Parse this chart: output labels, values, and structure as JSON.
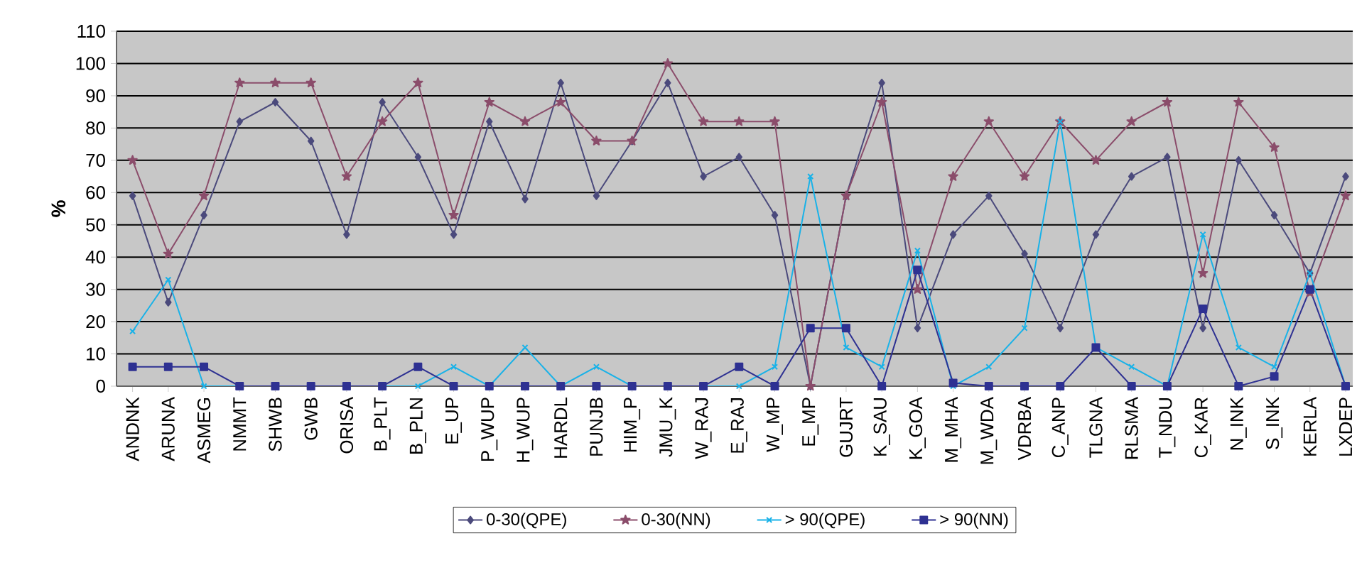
{
  "chart_data": {
    "type": "line",
    "ylabel": "%",
    "categories": [
      "ANDNK",
      "ARUNA",
      "ASMEG",
      "NMMT",
      "SHWB",
      "GWB",
      "ORISA",
      "B_PLT",
      "B_PLN",
      "E_UP",
      "P_WUP",
      "H_WUP",
      "HARDL",
      "PUNJB",
      "HIM_P",
      "JMU_K",
      "W_RAJ",
      "E_RAJ",
      "W_MP",
      "E_MP",
      "GUJRT",
      "K_SAU",
      "K_GOA",
      "M_MHA",
      "M_WDA",
      "VDRBA",
      "C_ANP",
      "TLGNA",
      "RLSMA",
      "T_NDU",
      "C_KAR",
      "N_INK",
      "S_INK",
      "KERLA",
      "LXDEP"
    ],
    "series": [
      {
        "name": "0-30(QPE)",
        "color": "#4b4a7c",
        "marker": "diamond",
        "values": [
          59,
          26,
          53,
          82,
          88,
          76,
          47,
          88,
          71,
          47,
          82,
          58,
          94,
          59,
          76,
          94,
          65,
          71,
          53,
          0,
          59,
          94,
          18,
          47,
          59,
          41,
          18,
          47,
          65,
          71,
          18,
          70,
          53,
          35,
          65
        ]
      },
      {
        "name": "0-30(NN)",
        "color": "#8b4d6b",
        "marker": "star",
        "values": [
          70,
          41,
          59,
          94,
          94,
          94,
          65,
          82,
          94,
          53,
          88,
          82,
          88,
          76,
          76,
          100,
          82,
          82,
          82,
          0,
          59,
          88,
          30,
          65,
          82,
          65,
          82,
          70,
          82,
          88,
          35,
          88,
          74,
          29,
          59
        ]
      },
      {
        "name": "> 90(QPE)",
        "color": "#19b2e8",
        "marker": "cross",
        "values": [
          17,
          33,
          0,
          0,
          0,
          0,
          0,
          0,
          0,
          6,
          0,
          12,
          0,
          6,
          0,
          0,
          0,
          0,
          6,
          65,
          12,
          6,
          42,
          0,
          6,
          18,
          82,
          12,
          6,
          0,
          47,
          12,
          6,
          35,
          0
        ]
      },
      {
        "name": "> 90(NN)",
        "color": "#2e3192",
        "marker": "square",
        "values": [
          6,
          6,
          6,
          0,
          0,
          0,
          0,
          0,
          6,
          0,
          0,
          0,
          0,
          0,
          0,
          0,
          0,
          6,
          0,
          18,
          18,
          0,
          36,
          1,
          0,
          0,
          0,
          12,
          0,
          0,
          24,
          0,
          3,
          30,
          0
        ]
      }
    ],
    "ylim": [
      0,
      110
    ],
    "yticks": [
      0,
      10,
      20,
      30,
      40,
      50,
      60,
      70,
      80,
      90,
      100,
      110
    ],
    "grid": "y",
    "legend": "bottom",
    "line_style": "solid"
  }
}
